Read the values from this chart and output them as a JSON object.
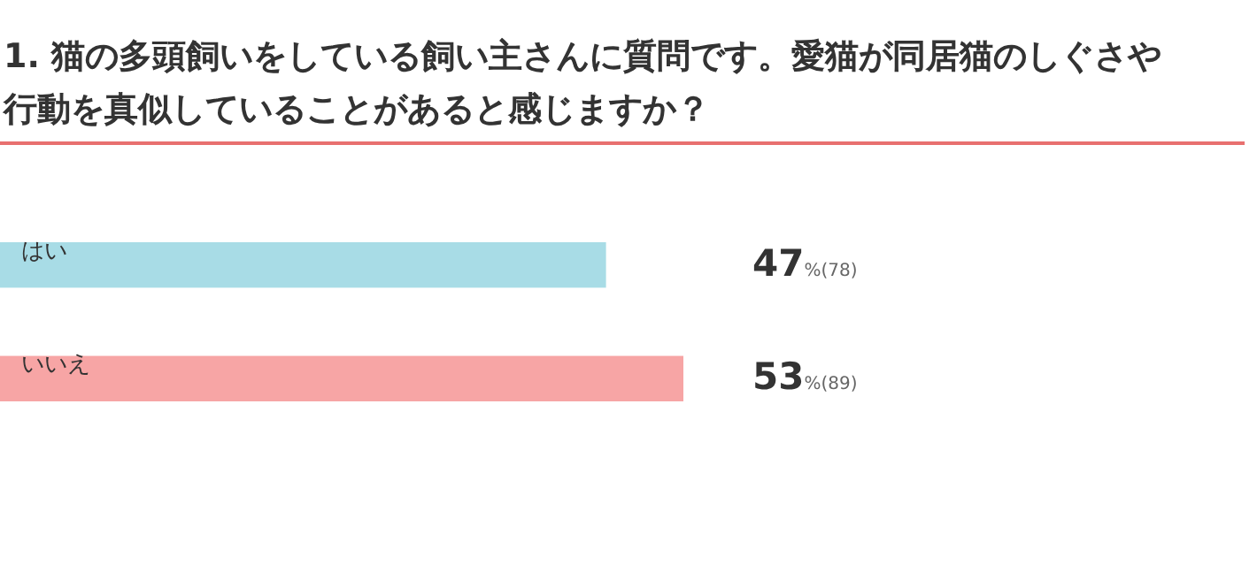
{
  "chart_data": {
    "type": "bar",
    "orientation": "horizontal",
    "title": "1. 猫の多頭飼いをしている飼い主さんに質問です。愛猫が同居猫のしぐさや行動を真似していることがあると感じますか？",
    "categories": [
      "はい",
      "いいえ"
    ],
    "values": [
      47,
      53
    ],
    "colors": [
      "#a8dce6",
      "#f7a5a5"
    ],
    "value_labels": [
      "47%(78)",
      "53%(89)"
    ]
  }
}
